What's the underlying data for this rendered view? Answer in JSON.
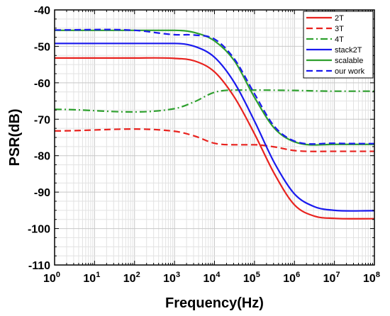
{
  "chart_data": {
    "type": "line",
    "xlabel": "Frequency(Hz)",
    "ylabel": "PSR(dB)",
    "x_scale": "log",
    "xlim": [
      1,
      100000000
    ],
    "ylim": [
      -110,
      -40
    ],
    "x_ticks": [
      {
        "base": "10",
        "exp": "0"
      },
      {
        "base": "10",
        "exp": "1"
      },
      {
        "base": "10",
        "exp": "2"
      },
      {
        "base": "10",
        "exp": "3"
      },
      {
        "base": "10",
        "exp": "4"
      },
      {
        "base": "10",
        "exp": "5"
      },
      {
        "base": "10",
        "exp": "6"
      },
      {
        "base": "10",
        "exp": "7"
      },
      {
        "base": "10",
        "exp": "8"
      }
    ],
    "y_ticks": [
      "-40",
      "-50",
      "-60",
      "-70",
      "-80",
      "-90",
      "-100",
      "-110"
    ],
    "grid": true,
    "legend_position": "top-right",
    "series": [
      {
        "name": "2T",
        "color": "#e8221e",
        "dash": "solid",
        "points": [
          [
            1,
            -53.2
          ],
          [
            100,
            -53.2
          ],
          [
            1000,
            -53.3
          ],
          [
            3162,
            -54
          ],
          [
            10000,
            -57
          ],
          [
            31623,
            -64
          ],
          [
            100000,
            -74
          ],
          [
            316228,
            -85
          ],
          [
            1000000,
            -93.5
          ],
          [
            3162278,
            -96.6
          ],
          [
            10000000,
            -97.2
          ],
          [
            100000000,
            -97.3
          ]
        ]
      },
      {
        "name": "3T",
        "color": "#e8221e",
        "dash": "dash",
        "points": [
          [
            1,
            -73.2
          ],
          [
            1000,
            -73.3
          ],
          [
            3162,
            -74.6
          ],
          [
            10000,
            -76.6
          ],
          [
            31623,
            -77
          ],
          [
            100000,
            -77
          ],
          [
            316228,
            -77.6
          ],
          [
            1000000,
            -78.6
          ],
          [
            10000000,
            -78.8
          ],
          [
            100000000,
            -78.8
          ]
        ]
      },
      {
        "name": "4T",
        "color": "#2ea02e",
        "dash": "dashdot",
        "points": [
          [
            1,
            -67.3
          ],
          [
            1000,
            -67.1
          ],
          [
            3162,
            -65.2
          ],
          [
            10000,
            -62.6
          ],
          [
            31623,
            -62.0
          ],
          [
            100000,
            -62.0
          ],
          [
            1000000,
            -62.1
          ],
          [
            10000000,
            -62.3
          ],
          [
            100000000,
            -62.3
          ]
        ]
      },
      {
        "name": "stack2T",
        "color": "#1a1aee",
        "dash": "solid",
        "points": [
          [
            1,
            -49.2
          ],
          [
            1000,
            -49.2
          ],
          [
            3162,
            -50
          ],
          [
            10000,
            -53
          ],
          [
            31623,
            -60
          ],
          [
            100000,
            -70.5
          ],
          [
            316228,
            -82
          ],
          [
            1000000,
            -90.5
          ],
          [
            3162278,
            -94
          ],
          [
            10000000,
            -95
          ],
          [
            100000000,
            -95.1
          ]
        ]
      },
      {
        "name": "scalable",
        "color": "#2ea02e",
        "dash": "solid",
        "points": [
          [
            1,
            -45.6
          ],
          [
            1000,
            -45.6
          ],
          [
            3162,
            -46.2
          ],
          [
            10000,
            -48.5
          ],
          [
            31623,
            -54
          ],
          [
            100000,
            -64
          ],
          [
            316228,
            -72.5
          ],
          [
            1000000,
            -76.2
          ],
          [
            10000000,
            -76.9
          ],
          [
            100000000,
            -76.9
          ]
        ]
      },
      {
        "name": "our work",
        "color": "#1a1aee",
        "dash": "dash",
        "points": [
          [
            1,
            -45.5
          ],
          [
            100,
            -45.6
          ],
          [
            1000,
            -46.8
          ],
          [
            3162,
            -46.9
          ],
          [
            10000,
            -48
          ],
          [
            31623,
            -53.5
          ],
          [
            100000,
            -63
          ],
          [
            316228,
            -72
          ],
          [
            1000000,
            -76
          ],
          [
            10000000,
            -76.6
          ],
          [
            100000000,
            -76.7
          ]
        ]
      }
    ]
  }
}
